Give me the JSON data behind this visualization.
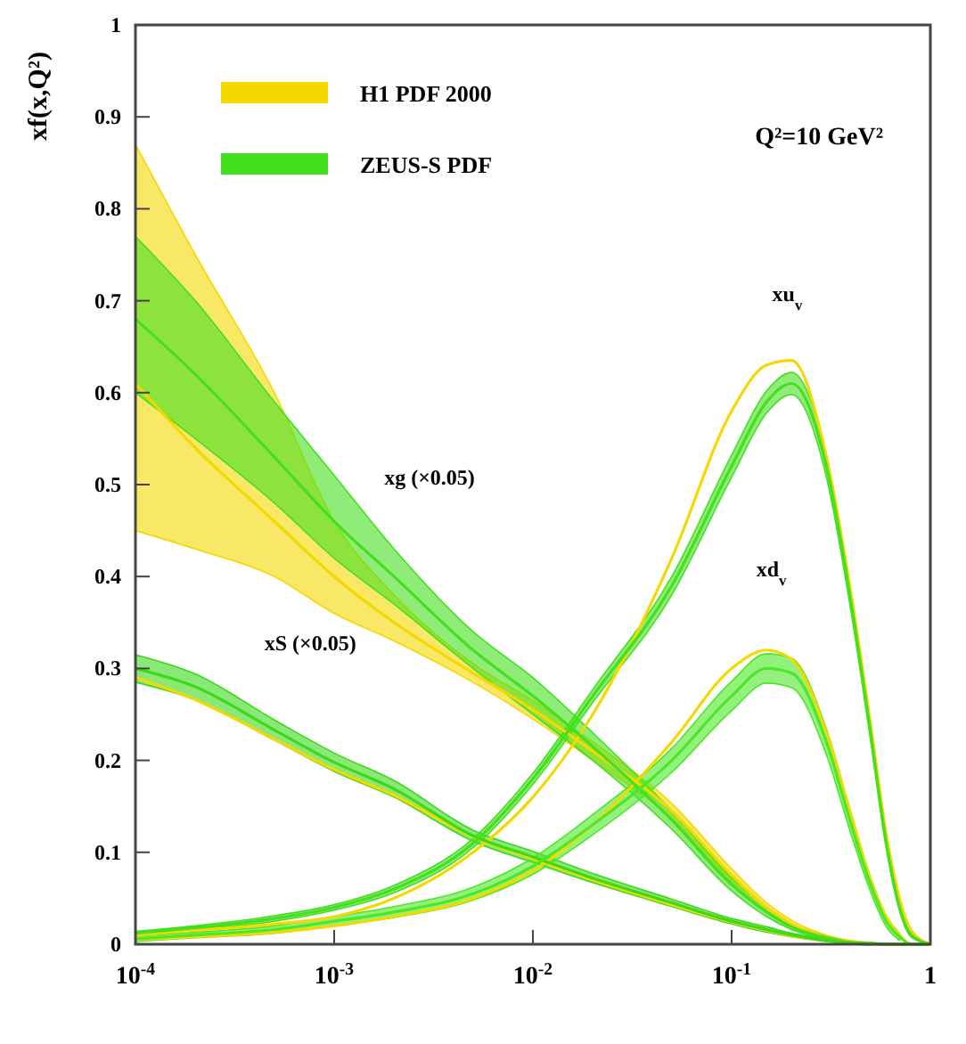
{
  "chart_data": {
    "type": "line",
    "ylabel": "xf(x,Q²)",
    "log": "x",
    "xlim": [
      0.0001,
      1
    ],
    "ylim": [
      0,
      1
    ],
    "xticks": [
      {
        "value": 0.0001,
        "label": "10$^{-4}$"
      },
      {
        "value": 0.001,
        "label": "10$^{-3}$"
      },
      {
        "value": 0.01,
        "label": "10$^{-2}$"
      },
      {
        "value": 0.1,
        "label": "10$^{-1}$"
      },
      1
    ],
    "yticks": [
      0,
      0.1,
      0.2,
      0.3,
      0.4,
      0.5,
      0.6,
      0.7,
      0.8,
      0.9,
      1
    ],
    "grid": false,
    "legend": "top left",
    "marker": "none",
    "line_style": "solid",
    "x": [
      0.0001,
      0.0002,
      0.0005,
      0.001,
      0.002,
      0.005,
      0.01,
      0.02,
      0.05,
      0.1,
      0.15,
      0.2,
      0.3,
      0.4,
      0.5,
      0.6,
      0.7,
      0.8,
      1
    ],
    "series": [
      {
        "name": "H1 PDF 2000",
        "color": "#f5d800",
        "values": [
          0.61,
          0.54,
          0.46,
          0.4,
          0.35,
          0.295,
          0.255,
          0.21,
          0.145,
          0.075,
          0.04,
          0.022,
          0.008,
          0.003,
          0.001,
          0,
          0,
          0,
          0
        ],
        "lower": [
          0.45,
          0.43,
          0.4,
          0.36,
          0.33,
          0.285,
          0.245,
          0.2,
          0.137,
          0.068,
          0.035,
          0.018,
          0.006,
          0.002,
          0.0005,
          0,
          0,
          0,
          0
        ],
        "upper": [
          0.87,
          0.75,
          0.6,
          0.46,
          0.38,
          0.305,
          0.265,
          0.22,
          0.153,
          0.082,
          0.045,
          0.026,
          0.01,
          0.004,
          0.0015,
          0,
          0,
          0,
          0
        ]
      },
      {
        "color": "#f5d800",
        "values": [
          0.29,
          0.266,
          0.223,
          0.19,
          0.162,
          0.117,
          0.093,
          0.07,
          0.043,
          0.024,
          0.015,
          0.009,
          0.004,
          0.001,
          0,
          0,
          0,
          0,
          0
        ]
      },
      {
        "color": "#f5d800",
        "values": [
          0.01,
          0.015,
          0.022,
          0.03,
          0.05,
          0.1,
          0.16,
          0.25,
          0.42,
          0.58,
          0.63,
          0.635,
          0.53,
          0.38,
          0.24,
          0.12,
          0.05,
          0.015,
          0
        ]
      },
      {
        "color": "#f5d800",
        "values": [
          0.005,
          0.008,
          0.013,
          0.02,
          0.03,
          0.05,
          0.08,
          0.13,
          0.22,
          0.3,
          0.32,
          0.31,
          0.23,
          0.14,
          0.07,
          0.03,
          0.01,
          0,
          0
        ]
      },
      {
        "name": "ZEUS-S PDF",
        "color": "#44e020",
        "values": [
          0.68,
          0.62,
          0.53,
          0.46,
          0.4,
          0.32,
          0.27,
          0.215,
          0.135,
          0.065,
          0.035,
          0.019,
          0.007,
          0.002,
          0.001,
          0,
          0,
          0,
          0
        ],
        "lower": [
          0.6,
          0.55,
          0.48,
          0.42,
          0.37,
          0.3,
          0.25,
          0.2,
          0.125,
          0.058,
          0.03,
          0.016,
          0.005,
          0.001,
          0,
          0,
          0,
          0,
          0
        ],
        "upper": [
          0.77,
          0.7,
          0.59,
          0.51,
          0.43,
          0.34,
          0.29,
          0.23,
          0.145,
          0.072,
          0.04,
          0.022,
          0.009,
          0.003,
          0.002,
          0,
          0,
          0,
          0
        ]
      },
      {
        "color": "#3cd81a",
        "values": [
          0.3,
          0.28,
          0.233,
          0.198,
          0.169,
          0.118,
          0.095,
          0.072,
          0.045,
          0.025,
          0.016,
          0.01,
          0.004,
          0.001,
          0,
          0,
          0,
          0,
          0
        ],
        "lower": [
          0.285,
          0.266,
          0.222,
          0.188,
          0.16,
          0.112,
          0.089,
          0.067,
          0.041,
          0.022,
          0.013,
          0.008,
          0.003,
          null,
          null,
          null,
          null,
          null,
          null
        ],
        "upper": [
          0.315,
          0.294,
          0.244,
          0.208,
          0.178,
          0.124,
          0.101,
          0.077,
          0.049,
          0.028,
          0.019,
          0.012,
          0.005,
          null,
          null,
          null,
          null,
          null,
          null
        ]
      },
      {
        "color": "#44e020",
        "values": [
          0.012,
          0.018,
          0.028,
          0.04,
          0.06,
          0.11,
          0.18,
          0.27,
          0.39,
          0.52,
          0.59,
          0.61,
          0.52,
          0.37,
          0.23,
          0.11,
          0.04,
          0.01,
          0
        ],
        "lower": [
          0.01,
          0.016,
          0.025,
          0.037,
          0.056,
          0.105,
          0.174,
          0.263,
          0.38,
          0.508,
          0.578,
          0.598,
          0.508,
          0.36,
          0.222,
          0.104,
          0.036,
          0.008,
          0
        ],
        "upper": [
          0.014,
          0.02,
          0.031,
          0.043,
          0.064,
          0.115,
          0.186,
          0.277,
          0.4,
          0.532,
          0.602,
          0.622,
          0.532,
          0.38,
          0.238,
          0.116,
          0.044,
          0.012,
          0
        ]
      },
      {
        "color": "#4ce828",
        "values": [
          0.006,
          0.01,
          0.016,
          0.025,
          0.035,
          0.055,
          0.085,
          0.13,
          0.2,
          0.27,
          0.3,
          0.295,
          0.22,
          0.13,
          0.065,
          0.025,
          0.008,
          0,
          0
        ],
        "lower": [
          0.003,
          0.007,
          0.012,
          0.02,
          0.029,
          0.048,
          0.076,
          0.119,
          0.187,
          0.254,
          0.284,
          0.279,
          0.206,
          0.119,
          0.057,
          0.019,
          0.004,
          null,
          null
        ],
        "upper": [
          0.009,
          0.013,
          0.02,
          0.03,
          0.041,
          0.062,
          0.094,
          0.141,
          0.213,
          0.286,
          0.316,
          0.311,
          0.234,
          0.141,
          0.073,
          0.031,
          0.012,
          null,
          null
        ]
      }
    ],
    "annotations": [
      "Q²=10 GeV²",
      "xu$_{v}$",
      "xd$_{v}$",
      "xg (×0.05)",
      "xS (×0.05)"
    ]
  }
}
